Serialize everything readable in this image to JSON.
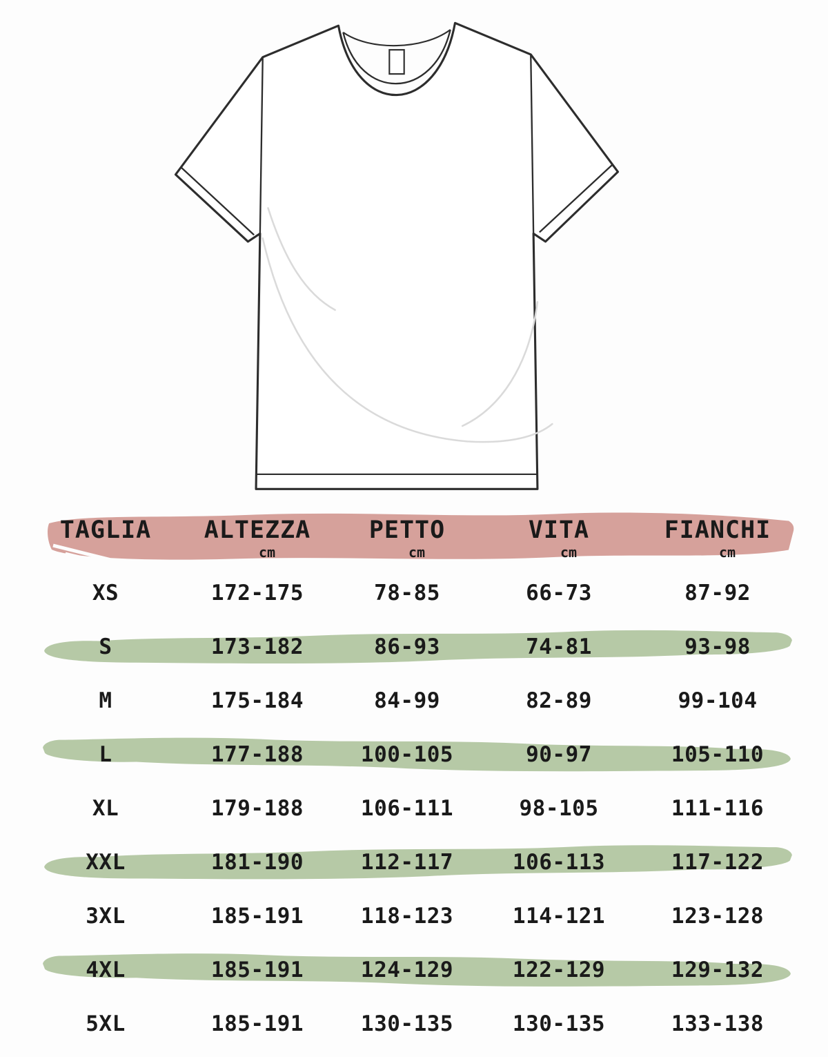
{
  "illustration": {
    "name": "t-shirt front outline drawing",
    "parts": [
      "crew-neck collar band",
      "inner neck label tag",
      "short sleeves with cuff bands",
      "bottom hem band",
      "fabric wrinkle lines"
    ]
  },
  "colors": {
    "background": "#fdfdfd",
    "header_brush": "#d6a19b",
    "row_brush": "#b6c9a6",
    "text": "#1a1a1a",
    "outline": "#2d2d2d",
    "wrinkle": "#dadada"
  },
  "chart_data": {
    "type": "table",
    "title": "",
    "columns": [
      "TAGLIA",
      "ALTEZZA",
      "PETTO",
      "VITA",
      "FIANCHI"
    ],
    "column_units": [
      "",
      "cm",
      "cm",
      "cm",
      "cm"
    ],
    "rows": [
      [
        "XS",
        "172-175",
        "78-85",
        "66-73",
        "87-92"
      ],
      [
        "S",
        "173-182",
        "86-93",
        "74-81",
        "93-98"
      ],
      [
        "M",
        "175-184",
        "84-99",
        "82-89",
        "99-104"
      ],
      [
        "L",
        "177-188",
        "100-105",
        "90-97",
        "105-110"
      ],
      [
        "XL",
        "179-188",
        "106-111",
        "98-105",
        "111-116"
      ],
      [
        "XXL",
        "181-190",
        "112-117",
        "106-113",
        "117-122"
      ],
      [
        "3XL",
        "185-191",
        "118-123",
        "114-121",
        "123-128"
      ],
      [
        "4XL",
        "185-191",
        "124-129",
        "122-129",
        "129-132"
      ],
      [
        "5XL",
        "185-191",
        "130-135",
        "130-135",
        "133-138"
      ]
    ],
    "highlighted_rows": [
      "S",
      "L",
      "XXL",
      "4XL"
    ],
    "header_style": "pink brush stroke band",
    "highlight_style": "green brush stroke band",
    "legend_position": "none",
    "grid": false
  }
}
